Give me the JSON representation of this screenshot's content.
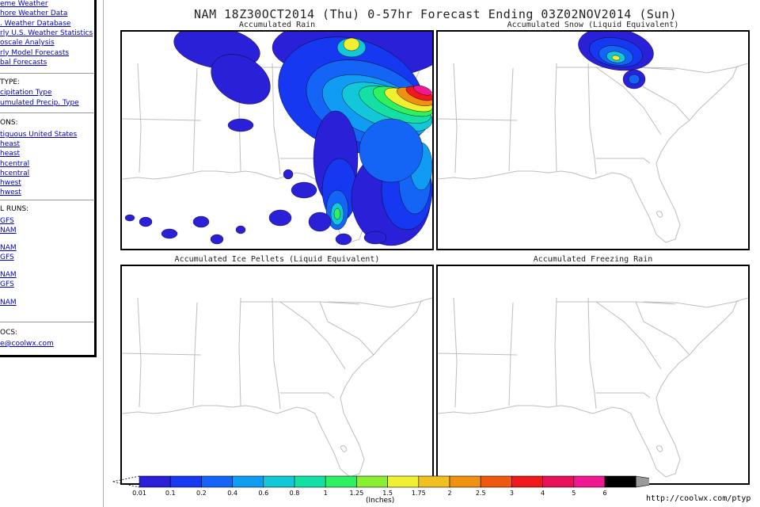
{
  "sidebar": {
    "links_top": [
      "eme Weather",
      "hore Weather Data",
      ". Weather Database",
      "rly U.S. Weather Statistics",
      "oscale Analysis",
      "rly Model Forecasts",
      "bal Forecasts"
    ],
    "type_heading": "TYPE:",
    "type_links": [
      "cipitation Type",
      "umulated Precip. Type"
    ],
    "regions_heading": "ONS:",
    "region_links": [
      "tiguous United States",
      "heast",
      "heast",
      "hcentral",
      "hcentral",
      "hwest",
      "hwest"
    ],
    "runs_heading": "L RUNS:",
    "run_links": [
      "GFS",
      "NAM",
      "NAM",
      "GFS",
      "NAM",
      "GFS",
      "NAM"
    ],
    "docs_heading": "OCS:",
    "docs_link": "e@coolwx.com"
  },
  "main_title": "NAM 18Z30OCT2014 (Thu) 0-57hr Forecast Ending 03Z02NOV2014 (Sun)",
  "panels": [
    {
      "title": "Accumulated Rain"
    },
    {
      "title": "Accumulated Snow (Liquid Equivalent)"
    },
    {
      "title": "Accumulated Ice Pellets (Liquid Equivalent)"
    },
    {
      "title": "Accumulated Freezing Rain"
    }
  ],
  "colorbar": {
    "labels": [
      "0.01",
      "0.1",
      "0.2",
      "0.4",
      "0.6",
      "0.8",
      "1",
      "1.25",
      "1.5",
      "1.75",
      "2",
      "2.5",
      "3",
      "4",
      "5",
      "6"
    ],
    "colors": [
      "#2a20d8",
      "#1538f0",
      "#1464f5",
      "#0f9cf2",
      "#12c8d8",
      "#14e0a6",
      "#2ef060",
      "#88f030",
      "#f0f030",
      "#f0c020",
      "#f09010",
      "#f05810",
      "#f01818",
      "#e8105a",
      "#f01890",
      "#000000"
    ],
    "units": "(Inches)"
  },
  "url": "http://coolwx.com/ptyp"
}
